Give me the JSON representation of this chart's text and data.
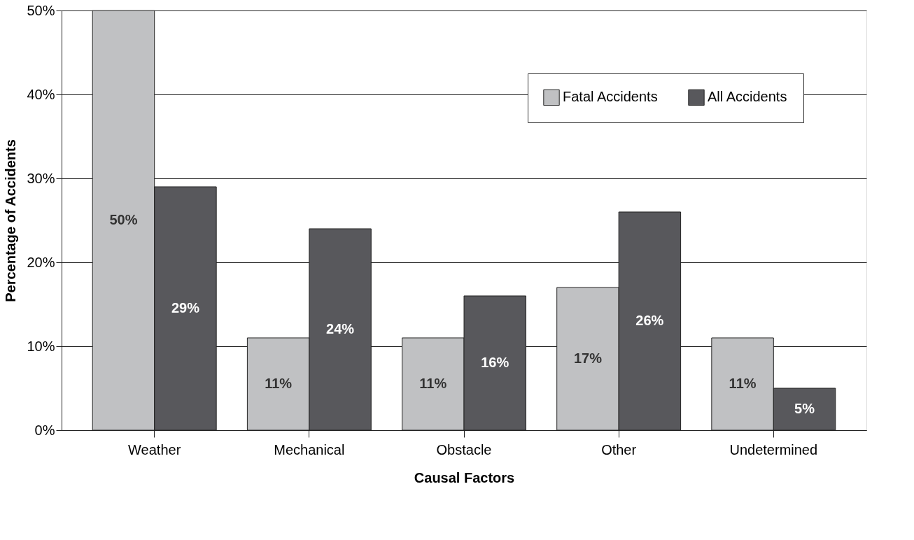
{
  "chart_data": {
    "type": "bar",
    "xlabel": "Causal Factors",
    "ylabel": "Percentage of Accidents",
    "categories": [
      "Weather",
      "Mechanical",
      "Obstacle",
      "Other",
      "Undetermined"
    ],
    "series": [
      {
        "name": "Fatal Accidents",
        "color": "#c0c1c3",
        "values": [
          50,
          11,
          11,
          17,
          11
        ],
        "value_labels": [
          "50%",
          "11%",
          "11%",
          "17%",
          "11%"
        ]
      },
      {
        "name": "All Accidents",
        "color": "#58585c",
        "values": [
          29,
          24,
          16,
          26,
          5
        ],
        "value_labels": [
          "29%",
          "24%",
          "16%",
          "26%",
          "5%"
        ]
      }
    ],
    "ylim": [
      0,
      50
    ],
    "yticks": [
      {
        "value": 0,
        "label": "0%"
      },
      {
        "value": 10,
        "label": "10%"
      },
      {
        "value": 20,
        "label": "20%"
      },
      {
        "value": 30,
        "label": "30%"
      },
      {
        "value": 40,
        "label": "40%"
      },
      {
        "value": 50,
        "label": "50%"
      }
    ],
    "grid": "y",
    "legend": "top right"
  }
}
